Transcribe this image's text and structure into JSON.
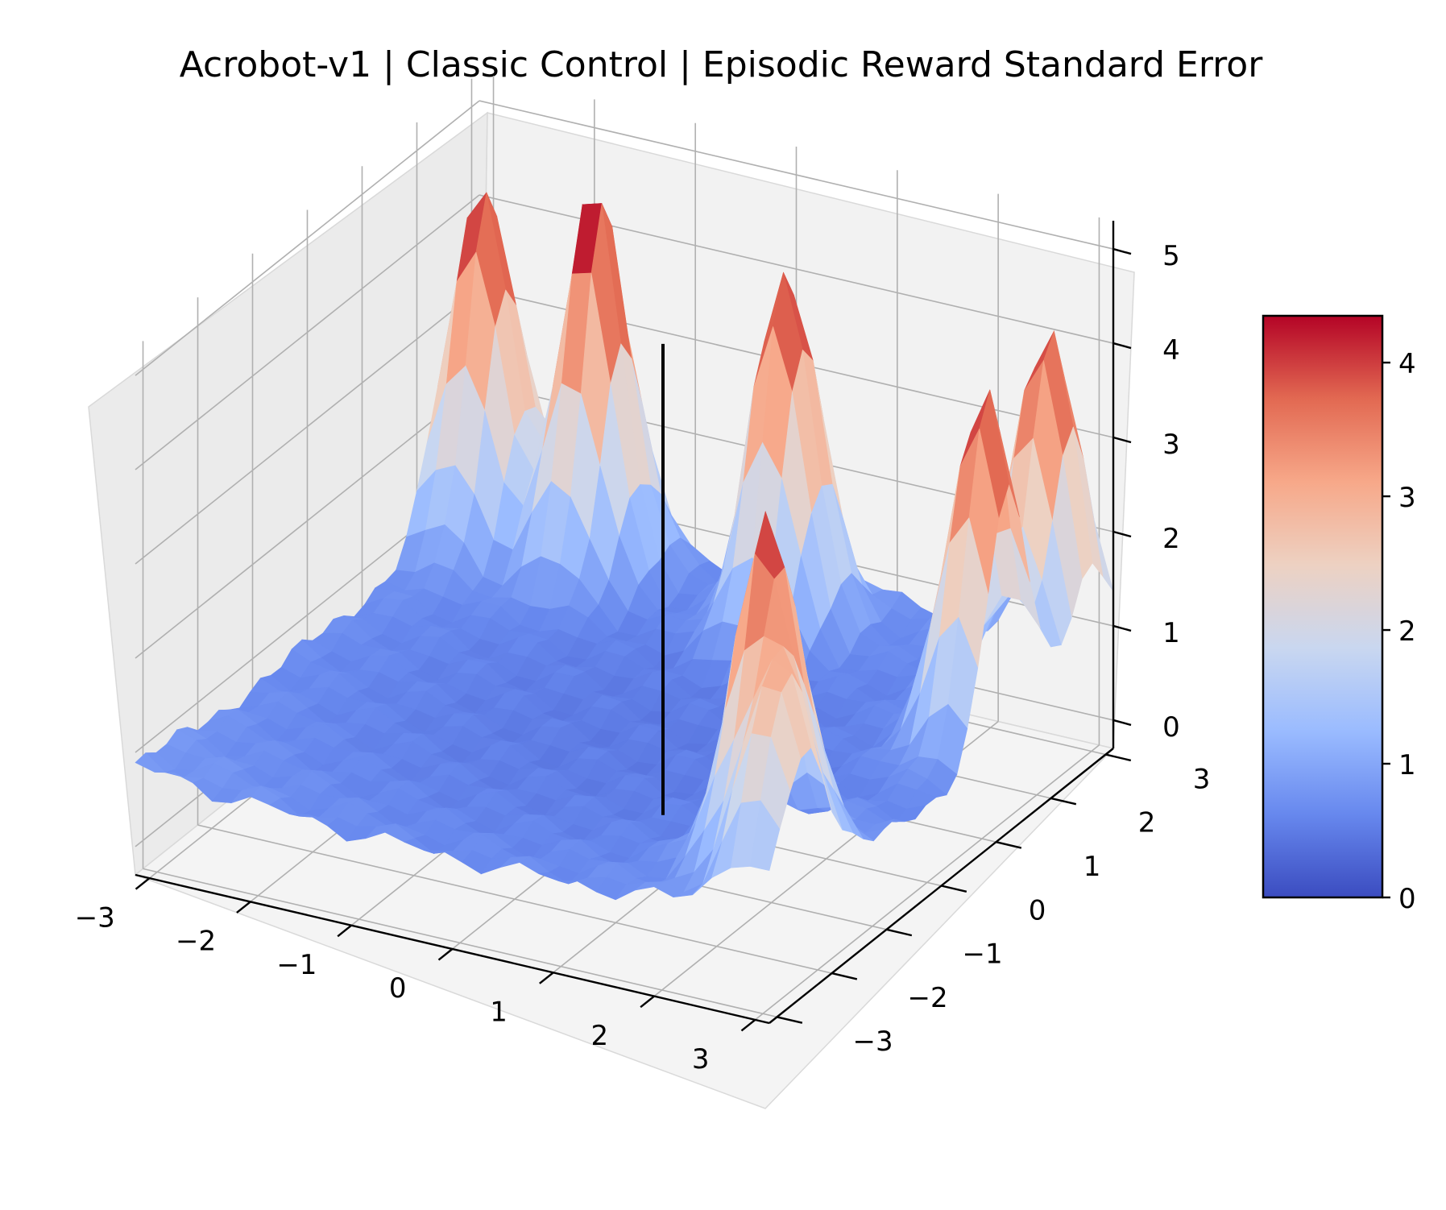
{
  "chart_data": {
    "type": "surface",
    "title": "Acrobot-v1 | Classic Control | Episodic Reward Standard Error",
    "xlabel": "",
    "ylabel": "",
    "zlabel": "",
    "x_ticks": [
      "−3",
      "−2",
      "−1",
      "0",
      "1",
      "2",
      "3"
    ],
    "y_ticks": [
      "−3",
      "−2",
      "−1",
      "0",
      "1",
      "2",
      "3"
    ],
    "z_ticks": [
      "0",
      "1",
      "2",
      "3",
      "4",
      "5"
    ],
    "xlim": [
      -3.14,
      3.14
    ],
    "ylim": [
      -3.14,
      3.14
    ],
    "zlim": [
      -0.3,
      5.3
    ],
    "colormap": "coolwarm",
    "colorbar": {
      "ticks": [
        "0",
        "1",
        "2",
        "3",
        "4"
      ],
      "range": [
        0,
        4.35
      ],
      "colors": [
        "#3b4cc0",
        "#6788ee",
        "#9abbff",
        "#c9d7f0",
        "#edd1c2",
        "#f7a889",
        "#e26952",
        "#b40426"
      ]
    },
    "grid": true,
    "vertical_marker": {
      "x": 0.6,
      "y": -0.4,
      "z_range": [
        0,
        5
      ]
    },
    "surface_features": [
      {
        "description": "low plateau",
        "z": 0.5
      },
      {
        "peak_at": [
          -2.8,
          2.6
        ],
        "z": 4.2
      },
      {
        "peak_at": [
          -1.7,
          2.6
        ],
        "z": 4.5
      },
      {
        "peak_at": [
          0.3,
          2.4
        ],
        "z": 4.3
      },
      {
        "peak_at": [
          2.7,
          2.7
        ],
        "z": 4.0
      },
      {
        "peak_at": [
          2.9,
          1.2
        ],
        "z": 4.2
      },
      {
        "peak_at": [
          2.4,
          -1.8
        ],
        "z": 4.0
      },
      {
        "peak_at": [
          2.9,
          -2.5
        ],
        "z": 2.7
      }
    ]
  }
}
